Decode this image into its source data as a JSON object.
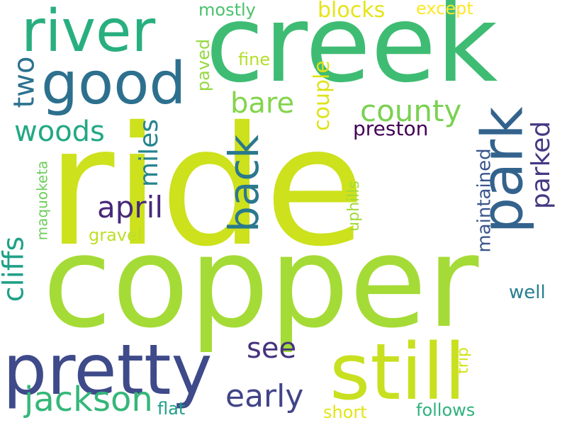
{
  "words": [
    {
      "text": "ride",
      "color": "#cde11d"
    },
    {
      "text": "copper",
      "color": "#a5db36"
    },
    {
      "text": "creek",
      "color": "#3fbc73"
    },
    {
      "text": "still",
      "color": "#c8e020"
    },
    {
      "text": "pretty",
      "color": "#3e4a89"
    },
    {
      "text": "river",
      "color": "#29af7f"
    },
    {
      "text": "good",
      "color": "#2d708e"
    },
    {
      "text": "park",
      "color": "#33638d"
    },
    {
      "text": "back",
      "color": "#2a788e"
    },
    {
      "text": "jackson",
      "color": "#35b779"
    },
    {
      "text": "county",
      "color": "#7ad151"
    },
    {
      "text": "early",
      "color": "#414487"
    },
    {
      "text": "april",
      "color": "#482878"
    },
    {
      "text": "bare",
      "color": "#84d44b"
    },
    {
      "text": "woods",
      "color": "#22a884"
    },
    {
      "text": "see",
      "color": "#46327e"
    },
    {
      "text": "cliffs",
      "color": "#1fa188"
    },
    {
      "text": "two",
      "color": "#2c728e"
    },
    {
      "text": "miles",
      "color": "#25858e"
    },
    {
      "text": "parked",
      "color": "#443983"
    },
    {
      "text": "preston",
      "color": "#440154"
    },
    {
      "text": "couple",
      "color": "#dde318"
    },
    {
      "text": "blocks",
      "color": "#e5e419"
    },
    {
      "text": "mostly",
      "color": "#4ac16d"
    },
    {
      "text": "except",
      "color": "#fde725"
    },
    {
      "text": "fine",
      "color": "#b5de2b"
    },
    {
      "text": "paved",
      "color": "#95d840"
    },
    {
      "text": "maintained",
      "color": "#39568c"
    },
    {
      "text": "well",
      "color": "#287d8e"
    },
    {
      "text": "uphills",
      "color": "#a0da39"
    },
    {
      "text": "gravel",
      "color": "#bddf26"
    },
    {
      "text": "maquoketa",
      "color": "#6ccd5a"
    },
    {
      "text": "flat",
      "color": "#1f9e89"
    },
    {
      "text": "short",
      "color": "#e2e418"
    },
    {
      "text": "follows",
      "color": "#2eb37c"
    },
    {
      "text": "trip",
      "color": "#d2e21b"
    }
  ]
}
